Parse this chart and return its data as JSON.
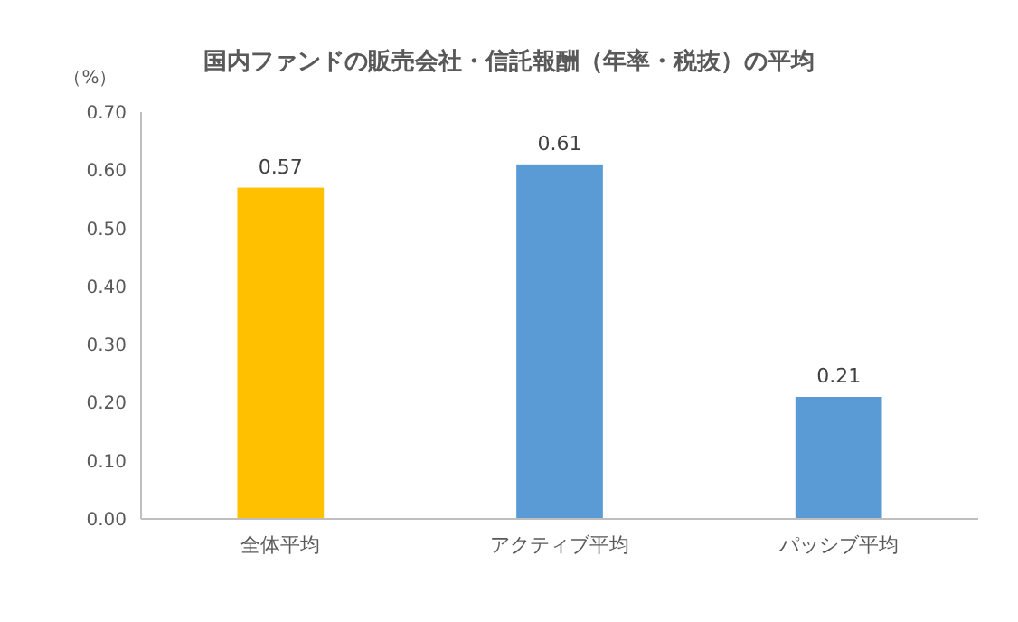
{
  "chart_data": {
    "type": "bar",
    "title": "国内ファンドの販売会社・信託報酬（年率・税抜）の平均",
    "ylabel": "（%）",
    "categories": [
      "全体平均",
      "アクティブ平均",
      "パッシブ平均"
    ],
    "values": [
      0.57,
      0.61,
      0.21
    ],
    "colors": [
      "#ffc000",
      "#5b9bd5",
      "#5b9bd5"
    ],
    "ylim": [
      0,
      0.7
    ],
    "yticks": [
      {
        "value": 0,
        "label": "0.00"
      },
      {
        "value": 0.1,
        "label": "0.10"
      },
      {
        "value": 0.2,
        "label": "0.20"
      },
      {
        "value": 0.3,
        "label": "0.30"
      },
      {
        "value": 0.4,
        "label": "0.40"
      },
      {
        "value": 0.5,
        "label": "0.50"
      },
      {
        "value": 0.6,
        "label": "0.60"
      },
      {
        "value": 0.7,
        "label": "0.70"
      }
    ],
    "data_labels": true,
    "grid": false
  }
}
